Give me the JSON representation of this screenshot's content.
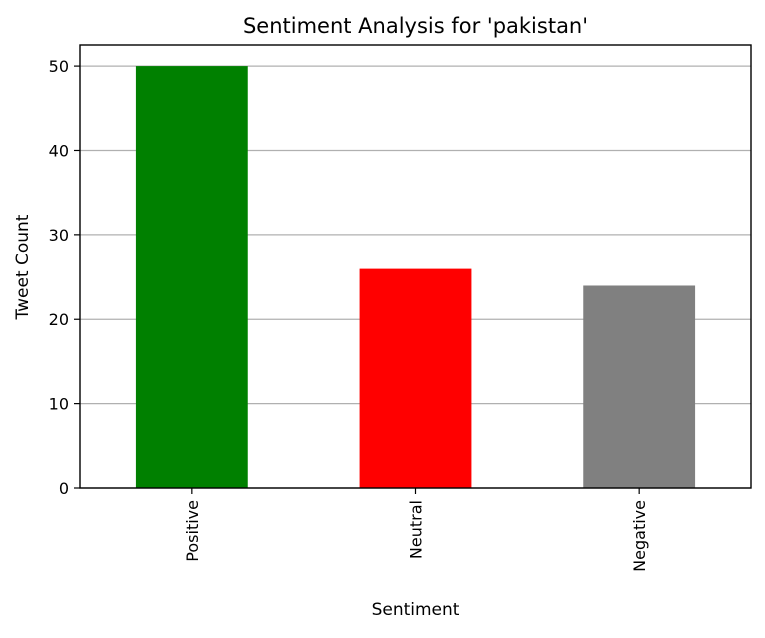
{
  "chart_data": {
    "type": "bar",
    "title": "Sentiment Analysis for 'pakistan'",
    "xlabel": "Sentiment",
    "ylabel": "Tweet Count",
    "categories": [
      "Positive",
      "Neutral",
      "Negative"
    ],
    "values": [
      50,
      26,
      24
    ],
    "bar_colors": [
      "#008000",
      "#ff0000",
      "#808080"
    ],
    "ylim": [
      0,
      52.5
    ],
    "yticks": [
      0,
      10,
      20,
      30,
      40,
      50
    ],
    "grid": {
      "y": true,
      "x": false
    },
    "legend": "none"
  }
}
